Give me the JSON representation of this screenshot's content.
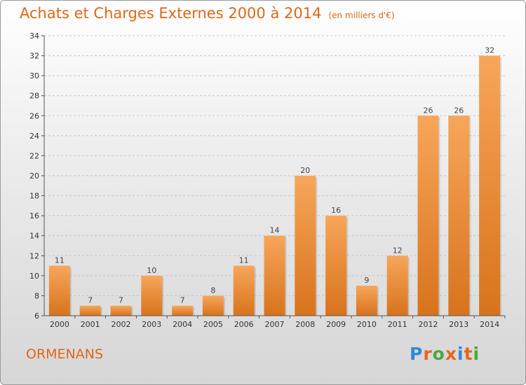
{
  "header": {
    "title": "Achats et Charges Externes 2000 à 2014",
    "unit": "(en milliers d'€)"
  },
  "footer": {
    "commune": "ORMENANS",
    "logo": [
      "P",
      "r",
      "o",
      "x",
      "i",
      "t",
      "i"
    ],
    "logo_colors": [
      "#2e8ad8",
      "#e8651b",
      "#4aa83a",
      "#e8651b",
      "#2e8ad8",
      "#e8651b",
      "#4aa83a"
    ]
  },
  "colors": {
    "accent": "#e2661a",
    "bar_light": "#f7a65a",
    "bar_dark": "#d8731c"
  },
  "chart_data": {
    "type": "bar",
    "categories": [
      "2000",
      "2001",
      "2002",
      "2003",
      "2004",
      "2005",
      "2006",
      "2007",
      "2008",
      "2009",
      "2010",
      "2011",
      "2012",
      "2013",
      "2014"
    ],
    "values": [
      11,
      7,
      7,
      10,
      7,
      8,
      11,
      14,
      20,
      16,
      9,
      12,
      26,
      26,
      32
    ],
    "value_labels": [
      "11",
      "7",
      "7",
      "10",
      "7",
      "8",
      "11",
      "14",
      "20",
      "16",
      "9",
      "12",
      "26",
      "26",
      "32"
    ],
    "y_ticks": [
      "6",
      "8",
      "10",
      "12",
      "14",
      "16",
      "18",
      "20",
      "22",
      "24",
      "26",
      "28",
      "30",
      "32",
      "34"
    ],
    "ylim": [
      6,
      34
    ],
    "grid": "horizontal dashed"
  }
}
